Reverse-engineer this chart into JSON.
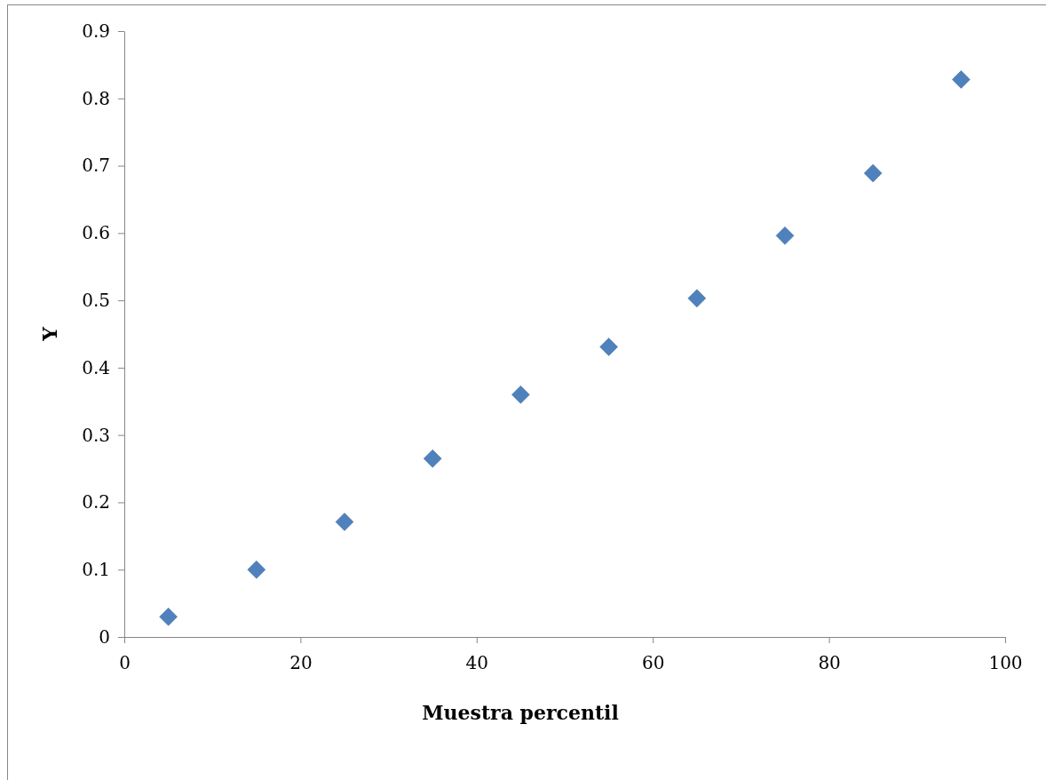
{
  "chart_data": {
    "type": "scatter",
    "xlabel": "Muestra percentil",
    "ylabel": "Y",
    "x": [
      5,
      15,
      25,
      35,
      45,
      55,
      65,
      75,
      85,
      95
    ],
    "series": [
      {
        "color": "#4f81bd",
        "values": [
          0.03,
          0.1,
          0.171,
          0.265,
          0.36,
          0.431,
          0.503,
          0.596,
          0.689,
          0.828
        ]
      }
    ],
    "xlim": [
      0,
      100
    ],
    "xticks": [
      0,
      20,
      40,
      60,
      80,
      100
    ],
    "ylim": [
      0,
      0.9
    ],
    "yticks": [
      0,
      0.1,
      0.2,
      0.3,
      0.4,
      0.5,
      0.6,
      0.7,
      0.8,
      0.9
    ],
    "marker": "diamond",
    "grid": false
  }
}
